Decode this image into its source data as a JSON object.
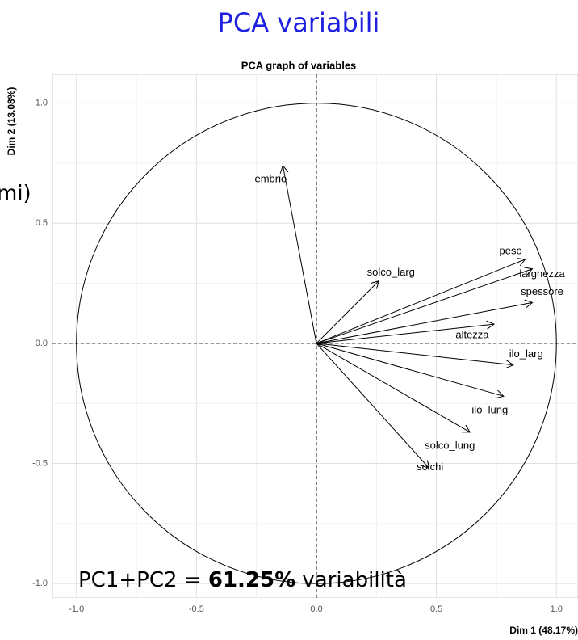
{
  "slide_title": "PCA variabili",
  "slide_fragment": "mi)",
  "annotation": {
    "prefix": "PC1+PC2 =",
    "highlight": "61.25%",
    "suffix": "variabilità"
  },
  "chart_data": {
    "type": "pca_variables",
    "title": "PCA graph of variables",
    "x_label": "Dim 1 (48.17%)",
    "y_label": "Dim 2 (13.08%)",
    "xlim": [
      -1.1,
      1.09
    ],
    "ylim": [
      -1.06,
      1.12
    ],
    "xticks": [
      {
        "value": -1,
        "label": "-1.0"
      },
      -0.5,
      {
        "value": 0,
        "label": "0.0"
      },
      0.5,
      {
        "value": 1,
        "label": "1.0"
      }
    ],
    "yticks": [
      {
        "value": -1,
        "label": "-1.0"
      },
      -0.5,
      {
        "value": 0,
        "label": "0.0"
      },
      0.5,
      {
        "value": 1,
        "label": "1.0"
      }
    ],
    "grid": true,
    "color": "#000000",
    "variables": [
      {
        "name": "embrio",
        "x": -0.14,
        "y": 0.74
      },
      {
        "name": "solco_larg",
        "x": 0.26,
        "y": 0.26
      },
      {
        "name": "peso",
        "x": 0.87,
        "y": 0.35
      },
      {
        "name": "larghezza",
        "x": 0.9,
        "y": 0.31
      },
      {
        "name": "spessore",
        "x": 0.9,
        "y": 0.17
      },
      {
        "name": "altezza",
        "x": 0.74,
        "y": 0.08
      },
      {
        "name": "ilo_larg",
        "x": 0.82,
        "y": -0.09
      },
      {
        "name": "ilo_lung",
        "x": 0.78,
        "y": -0.22
      },
      {
        "name": "solco_lung",
        "x": 0.64,
        "y": -0.37
      },
      {
        "name": "solchi",
        "x": 0.47,
        "y": -0.52
      }
    ]
  }
}
